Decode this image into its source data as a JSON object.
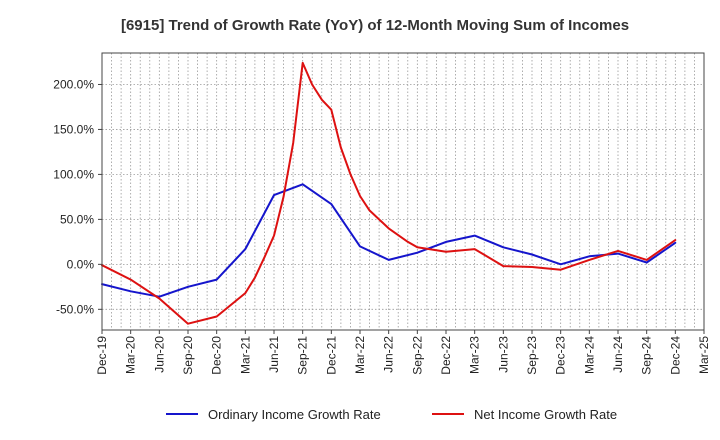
{
  "chart_data": {
    "type": "line",
    "title": "[6915]  Trend of Growth Rate (YoY) of 12-Month Moving Sum of Incomes",
    "xlabel": "",
    "ylabel": "",
    "ylim": [
      -73,
      235
    ],
    "yticks": [
      -50,
      0,
      50,
      100,
      150,
      200
    ],
    "ytick_labels": [
      "-50.0%",
      "0.0%",
      "50.0%",
      "100.0%",
      "150.0%",
      "200.0%"
    ],
    "x_tick_labels": [
      "Dec-19",
      "Mar-20",
      "Jun-20",
      "Sep-20",
      "Dec-20",
      "Mar-21",
      "Jun-21",
      "Sep-21",
      "Dec-21",
      "Mar-22",
      "Jun-22",
      "Sep-22",
      "Dec-22",
      "Mar-23",
      "Jun-23",
      "Sep-23",
      "Dec-23",
      "Mar-24",
      "Jun-24",
      "Sep-24",
      "Dec-24",
      "Mar-25"
    ],
    "grid": true,
    "legend_position": "bottom",
    "series": [
      {
        "name": "Ordinary Income Growth Rate",
        "color": "#1515cc",
        "points": [
          [
            0,
            -22
          ],
          [
            1,
            -30
          ],
          [
            2,
            -36
          ],
          [
            3,
            -25
          ],
          [
            4,
            -17
          ],
          [
            5,
            17
          ],
          [
            6,
            77
          ],
          [
            7,
            89
          ],
          [
            8,
            67
          ],
          [
            9,
            20
          ],
          [
            10,
            5
          ],
          [
            11,
            13
          ],
          [
            12,
            25
          ],
          [
            13,
            32
          ],
          [
            14,
            19
          ],
          [
            15,
            11
          ],
          [
            16,
            0
          ],
          [
            17,
            9
          ],
          [
            18,
            12
          ],
          [
            19,
            2
          ],
          [
            20,
            24
          ]
        ]
      },
      {
        "name": "Net Income Growth Rate",
        "color": "#dd1111",
        "points": [
          [
            0,
            -1
          ],
          [
            1,
            -17
          ],
          [
            2,
            -38
          ],
          [
            3,
            -66
          ],
          [
            4,
            -58
          ],
          [
            5,
            -32
          ],
          [
            5.33,
            -15
          ],
          [
            5.67,
            8
          ],
          [
            6,
            32
          ],
          [
            6.33,
            75
          ],
          [
            6.67,
            135
          ],
          [
            7,
            224
          ],
          [
            7.33,
            200
          ],
          [
            7.67,
            183
          ],
          [
            8,
            172
          ],
          [
            8.33,
            130
          ],
          [
            8.67,
            100
          ],
          [
            9,
            76
          ],
          [
            9.33,
            60
          ],
          [
            10,
            40
          ],
          [
            10.67,
            25
          ],
          [
            11,
            19
          ],
          [
            12,
            14
          ],
          [
            13,
            17
          ],
          [
            14,
            -2
          ],
          [
            15,
            -3
          ],
          [
            16,
            -6
          ],
          [
            17,
            5
          ],
          [
            18,
            15
          ],
          [
            19,
            5
          ],
          [
            20,
            27
          ]
        ]
      }
    ]
  }
}
